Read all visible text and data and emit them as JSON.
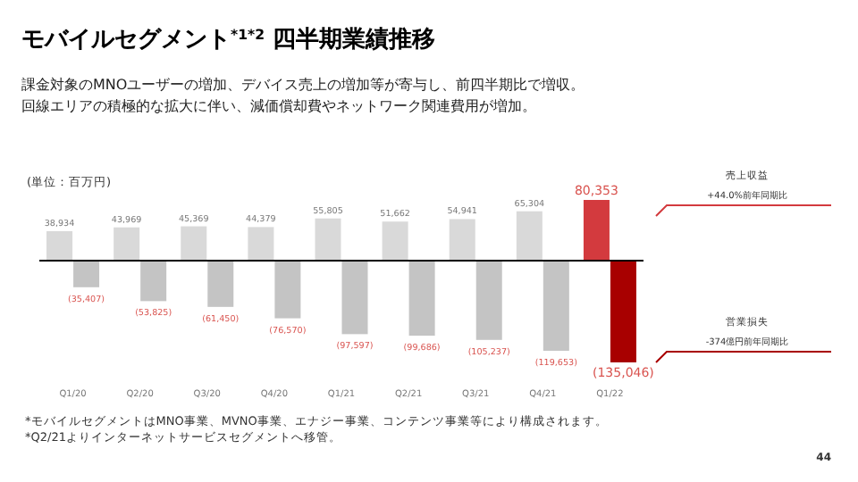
{
  "chart_data": {
    "type": "bar",
    "title": "モバイルセグメント$^{*1*2}$ 四半期業績推移",
    "subtitle": "課金対象のMNOユーザーの増加、デバイス売上の増加等が寄与し、前四半期比で増収。回線エリアの積極的な拡大に伴い、減価償却費やネットワーク関連費用が増加。",
    "categories": [
      "Q1/20",
      "Q2/20",
      "Q3/20",
      "Q4/20",
      "Q1/21",
      "Q2/21",
      "Q3/21",
      "Q4/21",
      "Q1/22"
    ],
    "series": [
      {
        "name": "売上収益",
        "colors": [
          "#d9d9d9",
          "#d9d9d9",
          "#d9d9d9",
          "#d9d9d9",
          "#d9d9d9",
          "#d9d9d9",
          "#d9d9d9",
          "#d9d9d9",
          "#d33a3e"
        ],
        "values": [
          38934,
          43969,
          45369,
          44379,
          55805,
          51662,
          54941,
          65304,
          80353
        ],
        "value_labels": [
          "38,934",
          "43,969",
          "45,369",
          "44,379",
          "55,805",
          "51,662",
          "54,941",
          "65,304",
          "80,353"
        ]
      },
      {
        "name": "営業損失",
        "colors": [
          "#c4c4c4",
          "#c4c4c4",
          "#c4c4c4",
          "#c4c4c4",
          "#c4c4c4",
          "#c4c4c4",
          "#c4c4c4",
          "#c4c4c4",
          "#a80000"
        ],
        "values": [
          -35407,
          -53825,
          -61450,
          -76570,
          -97597,
          -99686,
          -105237,
          -119653,
          -135046
        ],
        "value_labels": [
          "(35,407)",
          "(53,825)",
          "(61,450)",
          "(76,570)",
          "(97,597)",
          "(99,686)",
          "(105,237)",
          "(119,653)",
          "(135,046)"
        ]
      }
    ],
    "annotations": [
      "(単位：百万円)",
      "+44.0%前年同期比",
      "-374億円前年同期比",
      "*モバイルセグメントはMNO事業、MVNO事業、エナジー事業、コンテンツ事業等により構成されます。",
      "*Q2/21よりインターネットサービスセグメントへ移管。",
      "44"
    ]
  }
}
